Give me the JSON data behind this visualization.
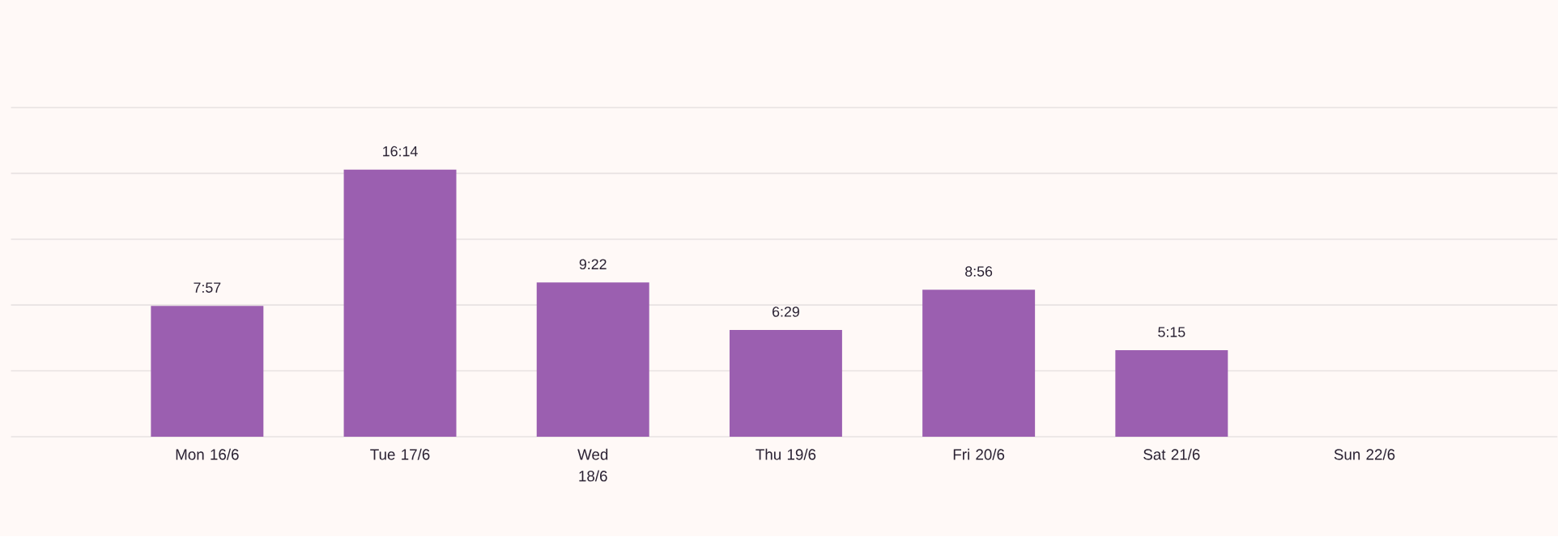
{
  "chart_data": {
    "type": "bar",
    "categories": [
      "Mon 16/6",
      "Tue 17/6",
      "Wed 18/6",
      "Thu 19/6",
      "Fri 20/6",
      "Sat 21/6",
      "Sun 22/6"
    ],
    "values": [
      7.95,
      16.2333,
      9.3667,
      6.4833,
      8.9333,
      5.25,
      null
    ],
    "value_labels": [
      "7:57",
      "16:14",
      "9:22",
      "6:29",
      "8:56",
      "5:15",
      null
    ],
    "color": "#9b5fb0",
    "ylim": [
      0,
      20
    ],
    "yticks": [
      {
        "value": 0,
        "label": null
      },
      {
        "value": 4,
        "label": null
      },
      {
        "value": 8,
        "label": null
      },
      {
        "value": 12,
        "label": null
      },
      {
        "value": 16,
        "label": null
      },
      {
        "value": 20,
        "label": null
      }
    ],
    "grid": "y",
    "tick_labels": "x"
  }
}
